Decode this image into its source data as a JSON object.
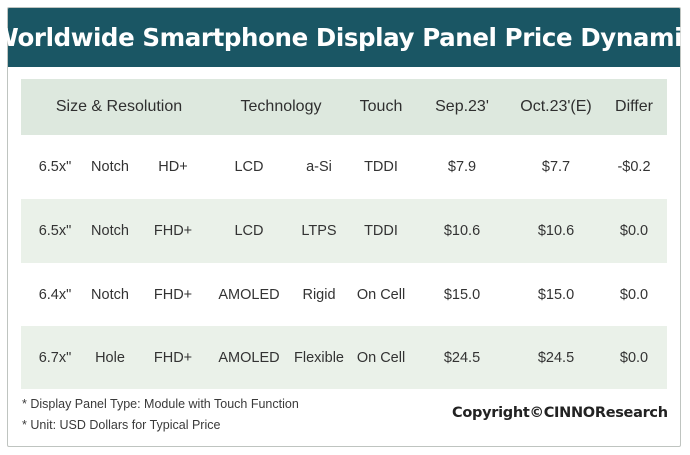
{
  "title": "Worldwide Smartphone Display Panel Price Dynamic",
  "table": {
    "headers": [
      "Size & Resolution",
      "Technology",
      "Touch",
      "Sep.23'",
      "Oct.23'(E)",
      "Differ"
    ],
    "rows": [
      {
        "size": "6.5x\"",
        "screen": "Notch",
        "res": "HD+",
        "tech": "LCD",
        "backplane": "a-Si",
        "touch": "TDDI",
        "sep": "$7.9",
        "oct": "$7.7",
        "differ": "-$0.2"
      },
      {
        "size": "6.5x\"",
        "screen": "Notch",
        "res": "FHD+",
        "tech": "LCD",
        "backplane": "LTPS",
        "touch": "TDDI",
        "sep": "$10.6",
        "oct": "$10.6",
        "differ": "$0.0"
      },
      {
        "size": "6.4x\"",
        "screen": "Notch",
        "res": "FHD+",
        "tech": "AMOLED",
        "backplane": "Rigid",
        "touch": "On Cell",
        "sep": "$15.0",
        "oct": "$15.0",
        "differ": "$0.0"
      },
      {
        "size": "6.7x\"",
        "screen": "Hole",
        "res": "FHD+",
        "tech": "AMOLED",
        "backplane": "Flexible",
        "touch": "On Cell",
        "sep": "$24.5",
        "oct": "$24.5",
        "differ": "$0.0"
      }
    ]
  },
  "footnotes": {
    "panel_type": "* Display Panel Type:  Module with Touch Function",
    "unit": "* Unit:  USD Dollars for Typical Price"
  },
  "copyright": "Copyright©CINNOResearch",
  "colors": {
    "title_bg": "#1a5664",
    "header_bg": "#dde8de",
    "band_bg": "#eaf1e9"
  }
}
